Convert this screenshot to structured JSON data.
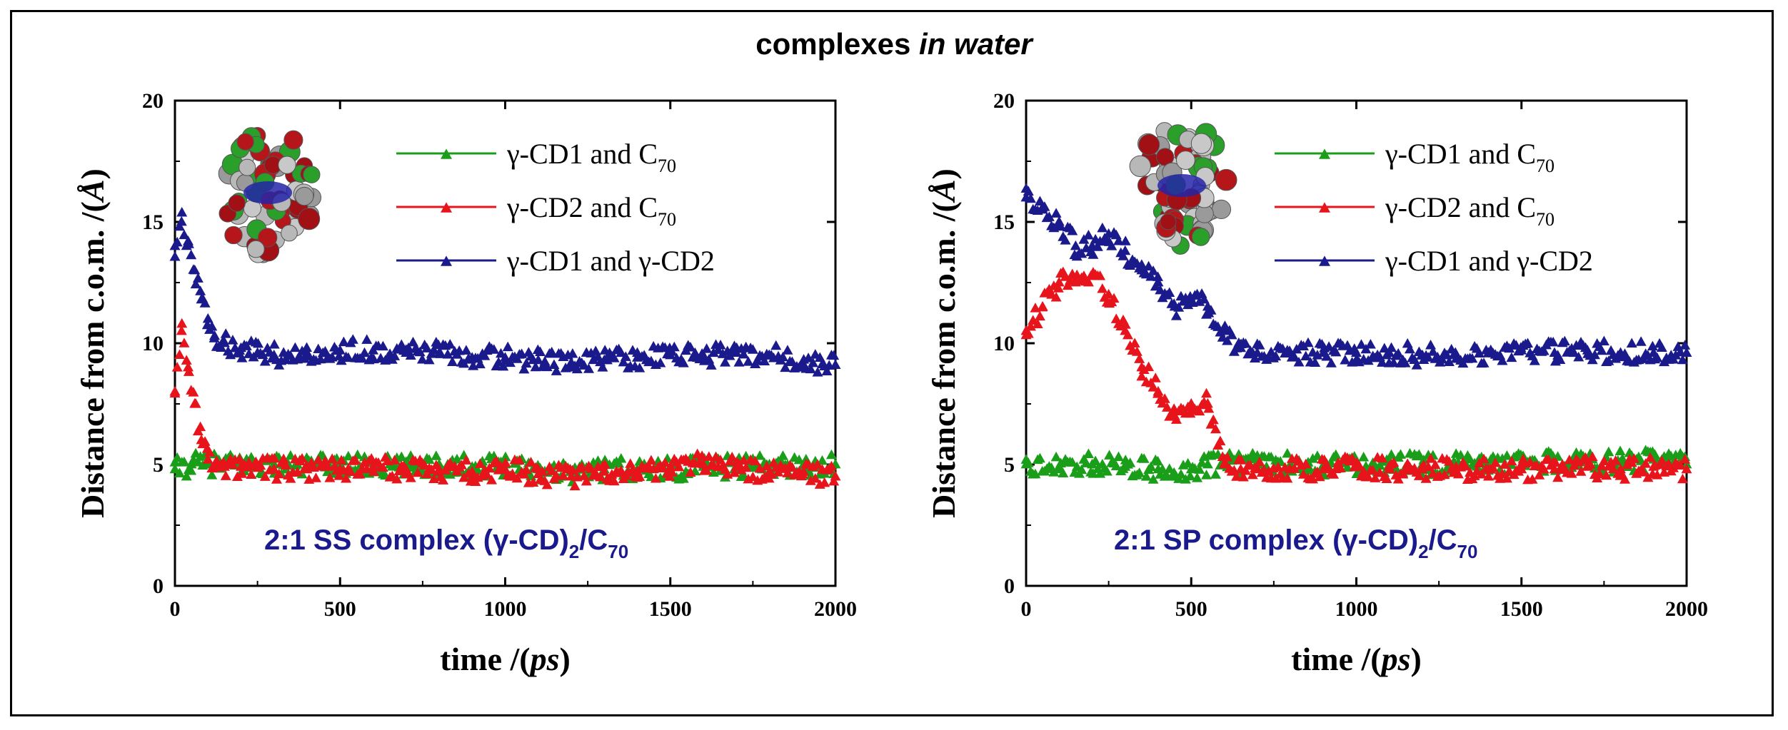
{
  "figure": {
    "title_prefix": "complexes ",
    "title_italic": "in water"
  },
  "chart_data": [
    {
      "type": "scatter",
      "title": "",
      "annotation": "2:1 SS complex (γ-CD)2/C70",
      "annotation_parts": [
        "2:1 SS complex (γ-CD)",
        "2",
        "/C",
        "70"
      ],
      "xlabel": "time /(ps)",
      "xlabel_parts": [
        "time /(",
        "ps",
        ")"
      ],
      "ylabel": "Distance from c.o.m. /(Å)",
      "ylabel_parts": [
        "Distance from c.o.m. /(",
        "Å",
        ")"
      ],
      "xlim": [
        0,
        2000
      ],
      "ylim": [
        0,
        20
      ],
      "xticks": [
        0,
        500,
        1000,
        1500,
        2000
      ],
      "yticks": [
        0,
        5,
        10,
        15,
        20
      ],
      "legend_position": "top-right",
      "series": [
        {
          "name": "γ-CD1 and C70",
          "label_main": "γ-CD1 and  C",
          "label_sub": "70",
          "color": "#1a9e1a",
          "x": [
            0,
            50,
            100,
            200,
            300,
            400,
            500,
            600,
            700,
            800,
            900,
            1000,
            1100,
            1200,
            1300,
            1400,
            1500,
            1600,
            1700,
            1800,
            1900,
            2000
          ],
          "y": [
            4.8,
            5.0,
            5.0,
            5.0,
            5.0,
            4.9,
            5.0,
            4.9,
            4.9,
            5.0,
            4.9,
            5.0,
            4.8,
            4.7,
            4.8,
            4.8,
            4.8,
            4.9,
            4.9,
            5.0,
            4.9,
            5.0
          ]
        },
        {
          "name": "γ-CD2 and C70",
          "label_main": "γ-CD2 and  C",
          "label_sub": "70",
          "color": "#e8141c",
          "x": [
            0,
            20,
            40,
            60,
            80,
            100,
            150,
            200,
            300,
            400,
            500,
            600,
            700,
            800,
            900,
            1000,
            1100,
            1200,
            1300,
            1400,
            1500,
            1600,
            1700,
            1800,
            1900,
            2000
          ],
          "y": [
            8.0,
            10.5,
            9.0,
            7.5,
            6.0,
            5.2,
            4.9,
            4.9,
            4.8,
            4.8,
            4.8,
            4.9,
            4.8,
            4.8,
            4.7,
            4.8,
            4.6,
            4.5,
            4.7,
            4.7,
            4.9,
            5.0,
            4.9,
            4.7,
            4.6,
            4.5
          ]
        },
        {
          "name": "γ-CD1 and γ-CD2",
          "label_main": "γ-CD1 and   γ-CD2",
          "label_sub": "",
          "color": "#1a1a8c",
          "x": [
            0,
            20,
            40,
            60,
            80,
            100,
            120,
            150,
            200,
            250,
            300,
            400,
            500,
            600,
            700,
            800,
            900,
            1000,
            1100,
            1200,
            1300,
            1400,
            1500,
            1600,
            1700,
            1800,
            1900,
            2000
          ],
          "y": [
            14.0,
            15.0,
            14.2,
            13.0,
            11.8,
            11.0,
            10.3,
            10.0,
            9.8,
            9.6,
            9.5,
            9.6,
            9.7,
            9.7,
            9.6,
            9.6,
            9.4,
            9.4,
            9.3,
            9.2,
            9.3,
            9.4,
            9.5,
            9.5,
            9.6,
            9.5,
            9.2,
            9.1
          ]
        }
      ]
    },
    {
      "type": "scatter",
      "title": "",
      "annotation": "2:1 SP complex (γ-CD)2/C70",
      "annotation_parts": [
        "2:1 SP complex (γ-CD)",
        "2",
        "/C",
        "70"
      ],
      "xlabel": "time /(ps)",
      "xlabel_parts": [
        "time /(",
        "ps",
        ")"
      ],
      "ylabel": "Distance from c.o.m. /(Å)",
      "ylabel_parts": [
        "Distance from c.o.m. /(",
        "Å",
        ")"
      ],
      "xlim": [
        0,
        2000
      ],
      "ylim": [
        0,
        20
      ],
      "xticks": [
        0,
        500,
        1000,
        1500,
        2000
      ],
      "yticks": [
        0,
        5,
        10,
        15,
        20
      ],
      "legend_position": "top-right",
      "series": [
        {
          "name": "γ-CD1 and C70",
          "label_main": "γ-CD1 and  C",
          "label_sub": "70",
          "color": "#1a9e1a",
          "x": [
            0,
            100,
            200,
            300,
            400,
            500,
            550,
            600,
            700,
            800,
            900,
            1000,
            1100,
            1200,
            1300,
            1400,
            1500,
            1600,
            1700,
            1800,
            1900,
            2000
          ],
          "y": [
            5.0,
            4.9,
            5.0,
            4.9,
            4.8,
            4.8,
            5.0,
            5.0,
            5.1,
            5.0,
            4.9,
            5.0,
            5.0,
            5.0,
            5.0,
            5.0,
            5.0,
            5.1,
            5.1,
            5.1,
            5.2,
            5.0
          ]
        },
        {
          "name": "γ-CD2 and C70",
          "label_main": "γ-CD2 and  C",
          "label_sub": "70",
          "color": "#e8141c",
          "x": [
            0,
            50,
            100,
            150,
            200,
            250,
            300,
            350,
            400,
            450,
            500,
            550,
            600,
            650,
            700,
            800,
            900,
            1000,
            1100,
            1200,
            1300,
            1400,
            1500,
            1600,
            1700,
            1800,
            1900,
            2000
          ],
          "y": [
            10.5,
            11.5,
            12.5,
            12.5,
            12.8,
            12.0,
            10.5,
            9.0,
            8.0,
            7.0,
            7.5,
            7.5,
            5.0,
            4.8,
            4.8,
            4.8,
            4.8,
            4.9,
            4.8,
            4.8,
            4.8,
            4.8,
            4.8,
            4.8,
            4.9,
            4.8,
            4.9,
            4.8
          ]
        },
        {
          "name": "γ-CD1 and γ-CD2",
          "label_main": "γ-CD1 and   γ-CD2",
          "label_sub": "",
          "color": "#1a1a8c",
          "x": [
            0,
            50,
            100,
            150,
            200,
            250,
            300,
            350,
            400,
            450,
            500,
            550,
            600,
            650,
            700,
            800,
            900,
            1000,
            1100,
            1200,
            1300,
            1400,
            1500,
            1600,
            1700,
            1800,
            1900,
            2000
          ],
          "y": [
            16.0,
            15.5,
            15.0,
            14.0,
            14.0,
            14.5,
            13.8,
            13.0,
            12.5,
            11.5,
            11.8,
            11.5,
            10.5,
            9.8,
            9.6,
            9.6,
            9.6,
            9.6,
            9.6,
            9.5,
            9.6,
            9.6,
            9.7,
            9.6,
            9.7,
            9.6,
            9.6,
            9.6
          ]
        }
      ]
    }
  ]
}
